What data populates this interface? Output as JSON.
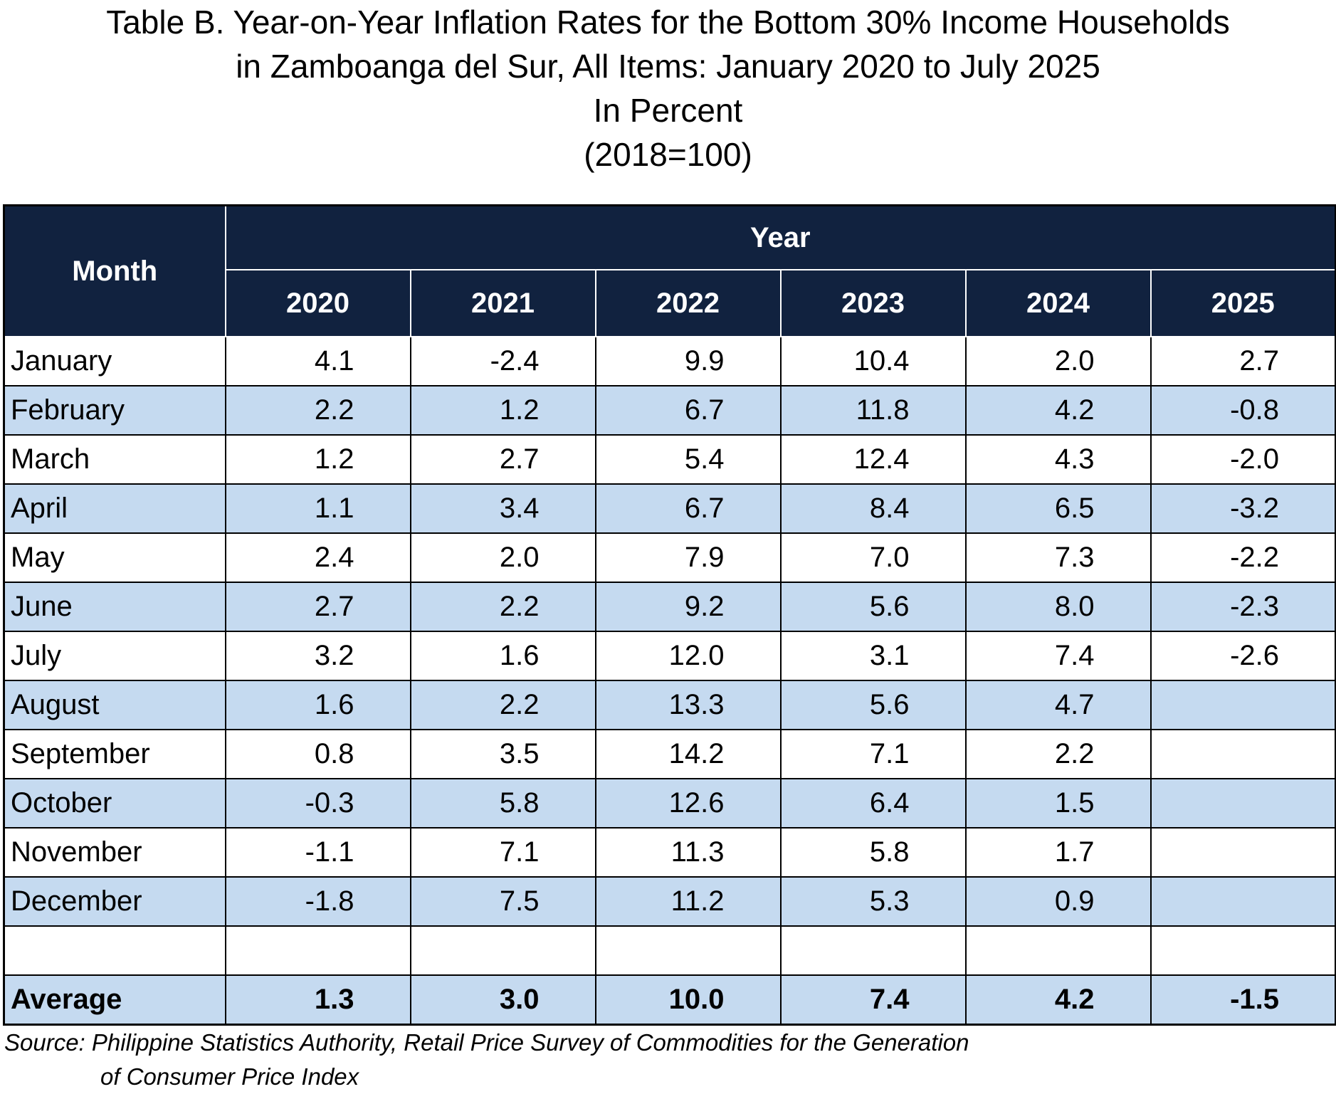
{
  "title": {
    "line1": "Table B. Year-on-Year Inflation Rates for the Bottom 30% Income Households",
    "line2": "in Zamboanga del Sur, All Items: January 2020 to July 2025",
    "line3": "In Percent",
    "line4": "(2018=100)"
  },
  "table": {
    "month_header": "Month",
    "year_header": "Year",
    "years": [
      "2020",
      "2021",
      "2022",
      "2023",
      "2024",
      "2025"
    ],
    "rows": [
      {
        "month": "January",
        "values": [
          "4.1",
          "-2.4",
          "9.9",
          "10.4",
          "2.0",
          "2.7"
        ]
      },
      {
        "month": "February",
        "values": [
          "2.2",
          "1.2",
          "6.7",
          "11.8",
          "4.2",
          "-0.8"
        ]
      },
      {
        "month": "March",
        "values": [
          "1.2",
          "2.7",
          "5.4",
          "12.4",
          "4.3",
          "-2.0"
        ]
      },
      {
        "month": "April",
        "values": [
          "1.1",
          "3.4",
          "6.7",
          "8.4",
          "6.5",
          "-3.2"
        ]
      },
      {
        "month": "May",
        "values": [
          "2.4",
          "2.0",
          "7.9",
          "7.0",
          "7.3",
          "-2.2"
        ]
      },
      {
        "month": "June",
        "values": [
          "2.7",
          "2.2",
          "9.2",
          "5.6",
          "8.0",
          "-2.3"
        ]
      },
      {
        "month": "July",
        "values": [
          "3.2",
          "1.6",
          "12.0",
          "3.1",
          "7.4",
          "-2.6"
        ]
      },
      {
        "month": "August",
        "values": [
          "1.6",
          "2.2",
          "13.3",
          "5.6",
          "4.7",
          ""
        ]
      },
      {
        "month": "September",
        "values": [
          "0.8",
          "3.5",
          "14.2",
          "7.1",
          "2.2",
          ""
        ]
      },
      {
        "month": "October",
        "values": [
          "-0.3",
          "5.8",
          "12.6",
          "6.4",
          "1.5",
          ""
        ]
      },
      {
        "month": "November",
        "values": [
          "-1.1",
          "7.1",
          "11.3",
          "5.8",
          "1.7",
          ""
        ]
      },
      {
        "month": "December",
        "values": [
          "-1.8",
          "7.5",
          "11.2",
          "5.3",
          "0.9",
          ""
        ]
      }
    ],
    "average": {
      "label": "Average",
      "values": [
        "1.3",
        "3.0",
        "10.0",
        "7.4",
        "4.2",
        "-1.5"
      ]
    }
  },
  "source": {
    "line1": "Source: Philippine Statistics Authority, Retail Price Survey of Commodities for the Generation",
    "line2": "of Consumer Price Index"
  }
}
